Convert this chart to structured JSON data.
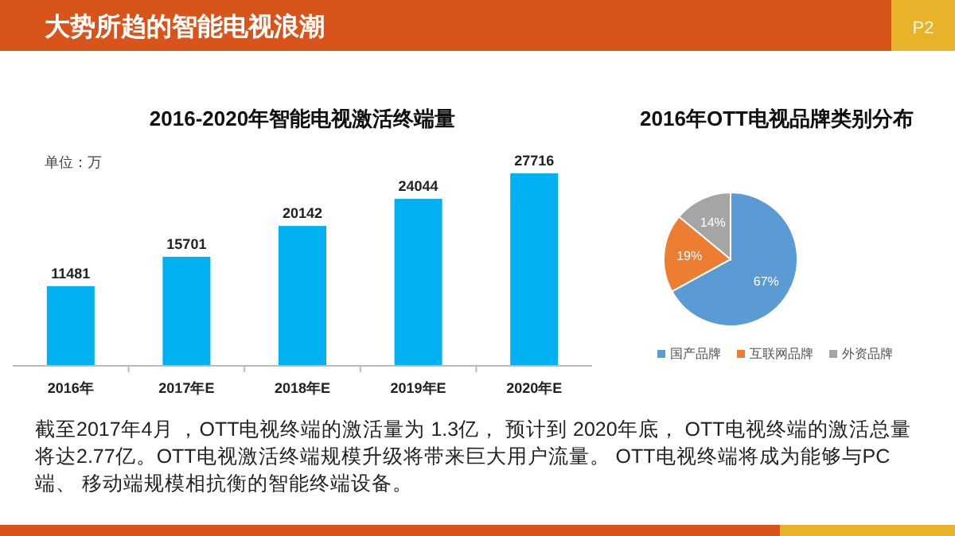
{
  "chart_data": [
    {
      "type": "bar",
      "title": "2016-2020年智能电视激活终端量",
      "ylabel": "单位：万",
      "categories": [
        "2016年",
        "2017年E",
        "2018年E",
        "2019年E",
        "2020年E"
      ],
      "values": [
        11481,
        15701,
        20142,
        24044,
        27716
      ],
      "color": "#00b0f0",
      "data_labels": true,
      "annotations": [
        "大势所趋的智能电视浪潮",
        "P2",
        "截至2017年4月 ，OTT电视终端的激活量为 1.3亿， 预计到 2020年底， OTT电视终端的激活总量将达2.77亿。OTT电视激活终端规模升级将带来巨大用户流量。 OTT电视终端将成为能够与PC端、 移动端规模相抗衡的智能终端设备。"
      ]
    },
    {
      "type": "pie",
      "title": "2016年OTT电视品牌类别分布",
      "categories": [
        "国产品牌",
        "互联网品牌",
        "外资品牌"
      ],
      "values": [
        67,
        19,
        14
      ],
      "colors": [
        "#5b9bd5",
        "#ed7d31",
        "#a5a5a5"
      ],
      "value_labels": [
        "67%",
        "19%",
        "14%"
      ],
      "legend": "bottom"
    }
  ]
}
